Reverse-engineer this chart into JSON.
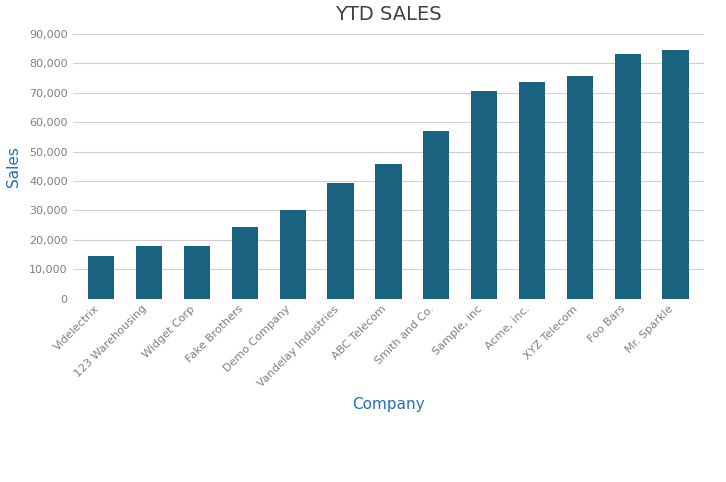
{
  "title": "YTD SALES",
  "title_fontsize": 14,
  "title_color": "#404040",
  "categories": [
    "Videlectrix",
    "123 Warehousing",
    "Widget Corp",
    "Fake Brothers",
    "Demo Company",
    "Vandelay Industries",
    "ABC Telecom",
    "Smith and Co.",
    "Sample, inc",
    "Acme, inc.",
    "XYZ Telecom",
    "Foo Bars",
    "Mr. Sparkle"
  ],
  "values": [
    14500,
    17800,
    18000,
    24500,
    30200,
    39200,
    45700,
    57000,
    70500,
    73500,
    75500,
    83000,
    84500
  ],
  "bar_color": "#1a6380",
  "xlabel": "Company",
  "ylabel": "Sales",
  "xlabel_color": "#1F6FBF",
  "ylabel_color": "#1F6FBF",
  "xlabel_fontsize": 11,
  "ylabel_fontsize": 11,
  "ylim": [
    0,
    90000
  ],
  "yticks": [
    0,
    10000,
    20000,
    30000,
    40000,
    50000,
    60000,
    70000,
    80000,
    90000
  ],
  "background_color": "#ffffff",
  "grid_color": "#d0d0d0",
  "tick_label_color": "#808080",
  "tick_label_fontsize": 8,
  "bar_width": 0.55
}
